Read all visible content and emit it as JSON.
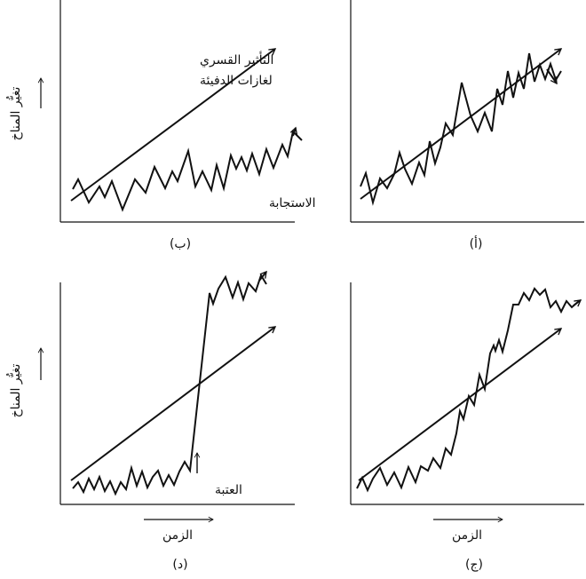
{
  "y_axis_label": "تغيُّر المناخ",
  "x_axis_label": "الزمن",
  "colors": {
    "ink": "#111111",
    "background": "#ffffff"
  },
  "panels": [
    {
      "id": "a",
      "caption": "(أ)"
    },
    {
      "id": "b",
      "caption": "(ب)",
      "annotations": {
        "forcing": [
          "التأثير القسري",
          "لغازات الدفيئة"
        ],
        "response": "الاستجابة"
      }
    },
    {
      "id": "c",
      "caption": "(ج)"
    },
    {
      "id": "d",
      "caption": "(د)",
      "annotations": {
        "threshold": "العتبة"
      }
    }
  ]
}
